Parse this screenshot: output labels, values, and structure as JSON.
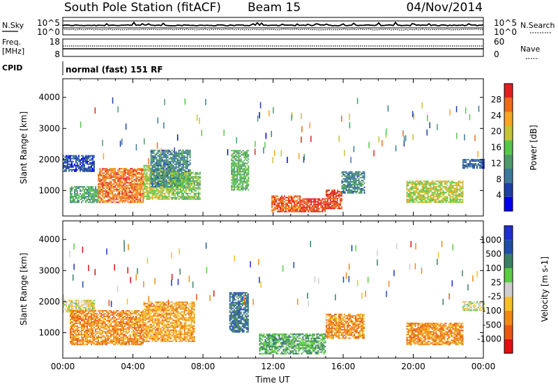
{
  "header": {
    "station": "South Pole Station (fitACF)",
    "beam": "Beam 15",
    "date": "04/Nov/2014"
  },
  "strip_labels": {
    "nsky": "N.Sky",
    "nsky_top": "10^5",
    "nsky_bottom": "10^0",
    "nsearch": "N.Search",
    "nsearch_top": "10^5",
    "nsearch_bottom": "10^0",
    "freq_line1": "Freq.",
    "freq_line2": "[MHz]",
    "freq_top": "18",
    "freq_bottom": "8",
    "nave": "Nave",
    "nave_top": "60",
    "nave_bottom": "0",
    "cpid": "CPID",
    "cpid_value": "normal (fast) 151 RF"
  },
  "chart_data": [
    {
      "type": "heatmap",
      "panel": "power",
      "ylabel": "Slant Range [km]",
      "ylim": [
        180,
        4600
      ],
      "y_ticks": [
        "1000",
        "2000",
        "3000",
        "4000"
      ],
      "colorbar_label": "Power [dB]",
      "colorbar_ticks": [
        "28",
        "24",
        "20",
        "16",
        "12",
        "8",
        "4"
      ],
      "colorscale": [
        "#0000ee",
        "#1e3ea8",
        "#3d7a9a",
        "#4f9a6a",
        "#55c848",
        "#c4c43a",
        "#f5a623",
        "#ee6b18",
        "#e02020"
      ],
      "regions": [
        {
          "t0": 0.0,
          "t1": 1.8,
          "r0": 1600,
          "r1": 2100,
          "level": 0.15
        },
        {
          "t0": 0.4,
          "t1": 2.0,
          "r0": 600,
          "r1": 1100,
          "level": 0.4
        },
        {
          "t0": 2.0,
          "t1": 4.6,
          "r0": 600,
          "r1": 1700,
          "level": 0.85
        },
        {
          "t0": 4.6,
          "t1": 6.2,
          "r0": 700,
          "r1": 1800,
          "level": 0.6
        },
        {
          "t0": 5.0,
          "t1": 7.3,
          "r0": 1100,
          "r1": 2300,
          "level": 0.3
        },
        {
          "t0": 6.2,
          "t1": 7.8,
          "r0": 700,
          "r1": 1600,
          "level": 0.5
        },
        {
          "t0": 9.6,
          "t1": 10.6,
          "r0": 1000,
          "r1": 2300,
          "level": 0.45
        },
        {
          "t0": 11.9,
          "t1": 13.5,
          "r0": 300,
          "r1": 800,
          "level": 0.9
        },
        {
          "t0": 13.5,
          "t1": 15.0,
          "r0": 300,
          "r1": 750,
          "level": 0.95
        },
        {
          "t0": 15.0,
          "t1": 15.9,
          "r0": 400,
          "r1": 1000,
          "level": 0.95
        },
        {
          "t0": 15.9,
          "t1": 17.2,
          "r0": 900,
          "r1": 1600,
          "level": 0.3
        },
        {
          "t0": 19.6,
          "t1": 22.8,
          "r0": 600,
          "r1": 1300,
          "level": 0.6
        },
        {
          "t0": 22.8,
          "t1": 24.0,
          "r0": 1700,
          "r1": 2000,
          "level": 0.2
        }
      ]
    },
    {
      "type": "heatmap",
      "panel": "velocity",
      "ylabel": "Slant Range [km]",
      "xlabel": "Time UT",
      "ylim": [
        180,
        4600
      ],
      "y_ticks": [
        "1000",
        "2000",
        "3000",
        "4000"
      ],
      "x_ticks": [
        "00:00",
        "04:00",
        "08:00",
        "12:00",
        "16:00",
        "20:00",
        "00:00"
      ],
      "colorbar_label": "Velocity [m s-1]",
      "colorbar_ticks": [
        "1000",
        "500",
        "100",
        "25",
        "-25",
        "-100",
        "-500",
        "-1000"
      ],
      "colorscale": [
        "#e01010",
        "#e85810",
        "#f08a14",
        "#f5c028",
        "#cfcfcf",
        "#5acd40",
        "#3a8060",
        "#1e4ea8",
        "#1f2fd0"
      ],
      "regions": [
        {
          "t0": 0.0,
          "t1": 1.8,
          "r0": 1650,
          "r1": 2050,
          "level": 0.47
        },
        {
          "t0": 0.4,
          "t1": 4.6,
          "r0": 600,
          "r1": 1700,
          "level": 0.25
        },
        {
          "t0": 4.6,
          "t1": 7.5,
          "r0": 700,
          "r1": 2000,
          "level": 0.3
        },
        {
          "t0": 9.5,
          "t1": 10.6,
          "r0": 1000,
          "r1": 2300,
          "level": 0.82
        },
        {
          "t0": 11.2,
          "t1": 15.0,
          "r0": 300,
          "r1": 950,
          "level": 0.68
        },
        {
          "t0": 15.0,
          "t1": 17.2,
          "r0": 800,
          "r1": 1600,
          "level": 0.25
        },
        {
          "t0": 19.6,
          "t1": 22.8,
          "r0": 600,
          "r1": 1300,
          "level": 0.25
        },
        {
          "t0": 22.8,
          "t1": 24.0,
          "r0": 1700,
          "r1": 2000,
          "level": 0.47
        }
      ]
    }
  ]
}
